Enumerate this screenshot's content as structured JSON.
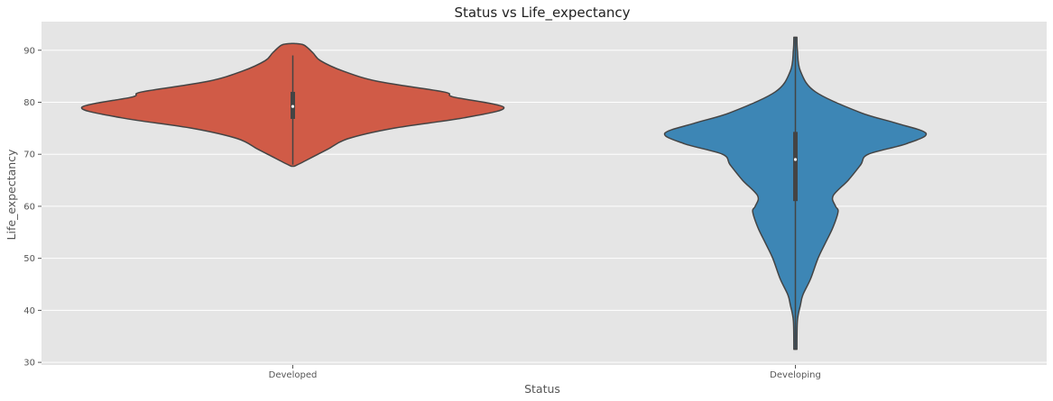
{
  "chart_data": {
    "type": "violin",
    "title": "Status vs Life_expectancy",
    "xlabel": "Status",
    "ylabel": "Life_expectancy",
    "categories": [
      "Developed",
      "Developing"
    ],
    "ylim": [
      29.5,
      95.5
    ],
    "yticks": [
      30,
      40,
      50,
      60,
      70,
      80,
      90
    ],
    "ytick_labels": [
      "30",
      "40",
      "50",
      "60",
      "70",
      "80",
      "90"
    ],
    "grid": true,
    "legend": "none",
    "style": {
      "plot_background": "#E5E5E5",
      "grid_color": "#FFFFFF",
      "outline_color": "#444444"
    },
    "series": [
      {
        "category": "Developed",
        "color": "#D05B47",
        "min": 68,
        "q1": 76.8,
        "median": 79.2,
        "q3": 82,
        "max": 89,
        "violin_y": [
          67.7,
          68.5,
          69.5,
          71,
          73,
          75,
          77,
          79,
          81,
          82,
          84,
          86,
          88,
          89.5,
          91,
          91.3
        ],
        "violin_half_width": [
          0.003,
          0.02,
          0.04,
          0.07,
          0.11,
          0.2,
          0.34,
          0.42,
          0.32,
          0.3,
          0.17,
          0.1,
          0.055,
          0.04,
          0.022,
          0.003
        ]
      },
      {
        "category": "Developing",
        "color": "#3D86B5",
        "min": 32.5,
        "q1": 61,
        "median": 69,
        "q3": 74.3,
        "max": 92.5,
        "violin_y": [
          32.5,
          38,
          41,
          43,
          46,
          50,
          53,
          56,
          59,
          60,
          62,
          65,
          68,
          70,
          72,
          74,
          76,
          78,
          82,
          86,
          90,
          92.5
        ],
        "violin_half_width": [
          0.003,
          0.004,
          0.01,
          0.015,
          0.03,
          0.045,
          0.06,
          0.075,
          0.085,
          0.08,
          0.075,
          0.105,
          0.13,
          0.145,
          0.22,
          0.26,
          0.2,
          0.13,
          0.04,
          0.01,
          0.004,
          0.003
        ]
      }
    ]
  }
}
